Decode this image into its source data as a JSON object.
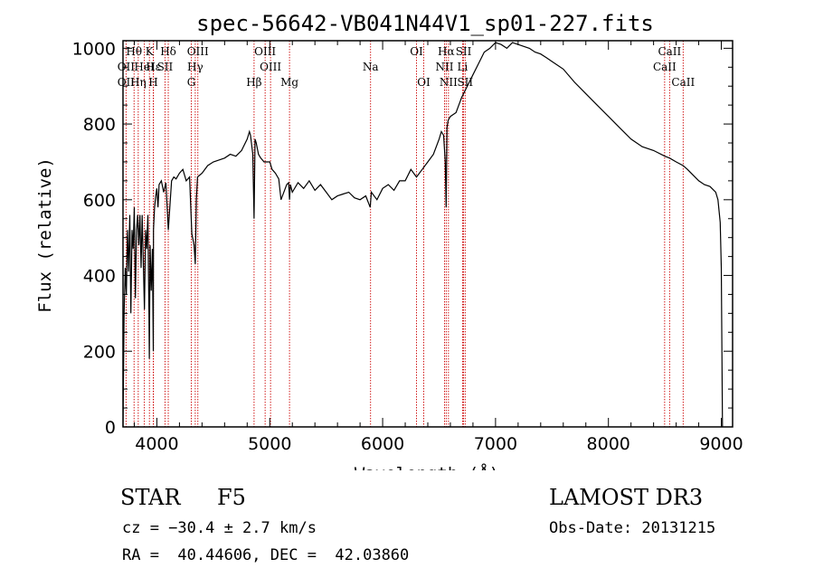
{
  "chart_data": {
    "type": "line",
    "title": "spec-56642-VB041N44V1_sp01-227.fits",
    "xlabel": "Wavelength (Å)",
    "ylabel": "Flux (relative)",
    "xlim": [
      3700,
      9100
    ],
    "ylim": [
      0,
      1020
    ],
    "xticks": [
      4000,
      5000,
      6000,
      7000,
      8000,
      9000
    ],
    "yticks": [
      0,
      200,
      400,
      600,
      800,
      1000
    ],
    "series": [
      {
        "name": "spectrum",
        "x": [
          3700,
          3705,
          3710,
          3720,
          3730,
          3740,
          3750,
          3760,
          3770,
          3780,
          3790,
          3800,
          3810,
          3820,
          3830,
          3840,
          3850,
          3860,
          3870,
          3880,
          3890,
          3900,
          3910,
          3920,
          3930,
          3933,
          3940,
          3950,
          3960,
          3968,
          3970,
          3980,
          3990,
          4000,
          4010,
          4020,
          4040,
          4060,
          4080,
          4101,
          4110,
          4130,
          4150,
          4170,
          4200,
          4230,
          4260,
          4290,
          4310,
          4330,
          4340,
          4350,
          4360,
          4400,
          4450,
          4500,
          4550,
          4600,
          4650,
          4700,
          4750,
          4800,
          4820,
          4830,
          4850,
          4861,
          4870,
          4880,
          4900,
          4920,
          4950,
          4980,
          5000,
          5020,
          5050,
          5080,
          5100,
          5150,
          5167,
          5175,
          5183,
          5200,
          5250,
          5300,
          5350,
          5400,
          5450,
          5500,
          5550,
          5600,
          5650,
          5700,
          5750,
          5800,
          5850,
          5890,
          5900,
          5950,
          6000,
          6050,
          6100,
          6150,
          6200,
          6250,
          6300,
          6350,
          6400,
          6450,
          6500,
          6520,
          6540,
          6555,
          6563,
          6570,
          6580,
          6600,
          6650,
          6700,
          6750,
          6800,
          6850,
          6900,
          6950,
          7000,
          7050,
          7100,
          7150,
          7200,
          7250,
          7300,
          7350,
          7400,
          7450,
          7500,
          7600,
          7700,
          7800,
          7900,
          8000,
          8100,
          8200,
          8300,
          8400,
          8500,
          8542,
          8600,
          8662,
          8700,
          8750,
          8800,
          8850,
          8900,
          8950,
          8970,
          8990,
          9000,
          9010
        ],
        "values": [
          0,
          150,
          300,
          420,
          350,
          520,
          410,
          560,
          300,
          520,
          470,
          580,
          340,
          520,
          560,
          480,
          560,
          420,
          560,
          430,
          310,
          520,
          470,
          560,
          300,
          180,
          480,
          360,
          470,
          200,
          520,
          580,
          610,
          630,
          580,
          640,
          650,
          620,
          645,
          520,
          560,
          650,
          660,
          655,
          670,
          680,
          650,
          660,
          510,
          480,
          430,
          600,
          660,
          670,
          690,
          700,
          705,
          710,
          720,
          715,
          730,
          760,
          780,
          770,
          720,
          550,
          760,
          750,
          720,
          710,
          700,
          700,
          700,
          680,
          670,
          655,
          600,
          640,
          645,
          600,
          640,
          620,
          645,
          630,
          650,
          625,
          640,
          620,
          600,
          610,
          615,
          620,
          605,
          600,
          610,
          580,
          620,
          600,
          630,
          640,
          625,
          650,
          650,
          680,
          660,
          680,
          700,
          720,
          760,
          780,
          770,
          700,
          580,
          790,
          810,
          820,
          830,
          870,
          900,
          930,
          960,
          990,
          1000,
          1015,
          1010,
          1000,
          1015,
          1010,
          1005,
          1000,
          990,
          985,
          975,
          965,
          945,
          910,
          880,
          850,
          820,
          790,
          760,
          740,
          730,
          715,
          710,
          700,
          690,
          680,
          665,
          650,
          640,
          635,
          620,
          600,
          540,
          420,
          0
        ]
      }
    ],
    "spectral_lines": [
      {
        "label": "Hθ",
        "x": 3798,
        "row": 1
      },
      {
        "label": "OII",
        "x": 3727,
        "row": 2
      },
      {
        "label": "OII",
        "x": 3727,
        "row": 3
      },
      {
        "label": "K",
        "x": 3934,
        "row": 1
      },
      {
        "label": "Hε",
        "x": 3970,
        "row": 2
      },
      {
        "label": "HeI",
        "x": 3889,
        "row": 2
      },
      {
        "label": "Hη",
        "x": 3835,
        "row": 3
      },
      {
        "label": "H",
        "x": 3968,
        "row": 3
      },
      {
        "label": "Hδ",
        "x": 4101,
        "row": 1
      },
      {
        "label": "SII",
        "x": 4072,
        "row": 2
      },
      {
        "label": "OIII",
        "x": 4363,
        "row": 1
      },
      {
        "label": "Hγ",
        "x": 4340,
        "row": 2
      },
      {
        "label": "G",
        "x": 4305,
        "row": 3
      },
      {
        "label": "Hβ",
        "x": 4861,
        "row": 3
      },
      {
        "label": "OIII",
        "x": 4959,
        "row": 1
      },
      {
        "label": "OIII",
        "x": 5007,
        "row": 2
      },
      {
        "label": "Mg",
        "x": 5175,
        "row": 3
      },
      {
        "label": "Na",
        "x": 5893,
        "row": 2
      },
      {
        "label": "OI",
        "x": 6300,
        "row": 1
      },
      {
        "label": "OI",
        "x": 6364,
        "row": 3
      },
      {
        "label": "Hα",
        "x": 6563,
        "row": 1
      },
      {
        "label": "NII",
        "x": 6548,
        "row": 2
      },
      {
        "label": "NII",
        "x": 6583,
        "row": 3
      },
      {
        "label": "SII",
        "x": 6717,
        "row": 1
      },
      {
        "label": "Li",
        "x": 6708,
        "row": 2
      },
      {
        "label": "SII",
        "x": 6731,
        "row": 3
      },
      {
        "label": "CaII",
        "x": 8542,
        "row": 1
      },
      {
        "label": "CaII",
        "x": 8498,
        "row": 2
      },
      {
        "label": "CaII",
        "x": 8662,
        "row": 3
      }
    ]
  },
  "info": {
    "object_class": "STAR",
    "subclass": "F5",
    "survey": "LAMOST DR3",
    "redshift": "cz = −30.4 ± 2.7 km/s",
    "obs_date": "Obs-Date: 20131215",
    "coords": "RA =  40.44606, DEC =  42.03860"
  },
  "colors": {
    "line": "#000000",
    "marker_line": "#cc0000"
  }
}
